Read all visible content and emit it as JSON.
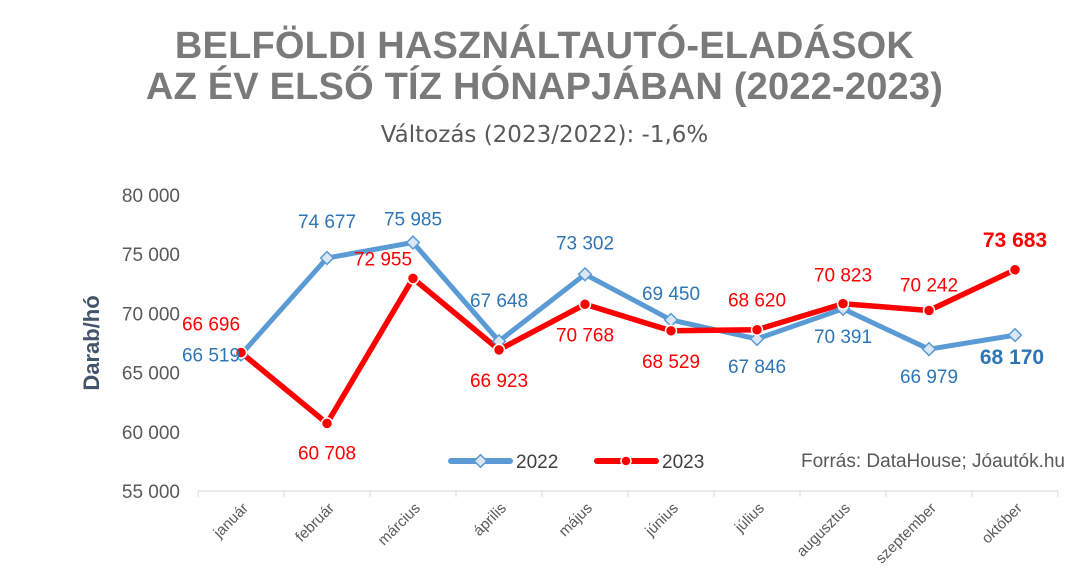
{
  "chart_data": {
    "type": "line",
    "title": "BELFÖLDI HASZNÁLTAUTÓ-ELADÁSOK",
    "title_line2": "AZ ÉV ELSŐ TÍZ HÓNAPJÁBAN (2022-2023)",
    "subtitle": "Változás (2023/2022): -1,6%",
    "ylabel": "Darab/hó",
    "xlabel": "",
    "ylim": [
      55000,
      80000
    ],
    "yticks": [
      55000,
      60000,
      65000,
      70000,
      75000,
      80000
    ],
    "ytick_labels": [
      "55 000",
      "60 000",
      "65 000",
      "70 000",
      "75 000",
      "80 000"
    ],
    "grid": false,
    "legend_position": "bottom-center",
    "categories": [
      "január",
      "február",
      "március",
      "április",
      "május",
      "június",
      "július",
      "augusztus",
      "szeptember",
      "október"
    ],
    "series": [
      {
        "name": "2022",
        "color": "#5b9bd5",
        "label_color": "#2e75b6",
        "values": [
          66519,
          74677,
          75985,
          67648,
          73302,
          69450,
          67846,
          70391,
          66979,
          68170
        ],
        "labels": [
          "66 519",
          "74 677",
          "75 985",
          "67 648",
          "73 302",
          "69 450",
          "67 846",
          "70 391",
          "66 979",
          "68 170"
        ]
      },
      {
        "name": "2023",
        "color": "#ff0000",
        "label_color": "#ff0000",
        "values": [
          66696,
          60708,
          72955,
          66923,
          70768,
          68529,
          68620,
          70823,
          70242,
          73683
        ],
        "labels": [
          "66 696",
          "60 708",
          "72 955",
          "66 923",
          "70 768",
          "68 529",
          "68 620",
          "70 823",
          "70 242",
          "73 683"
        ]
      }
    ],
    "source": "Forrás: DataHouse; Jóautók.hu"
  }
}
